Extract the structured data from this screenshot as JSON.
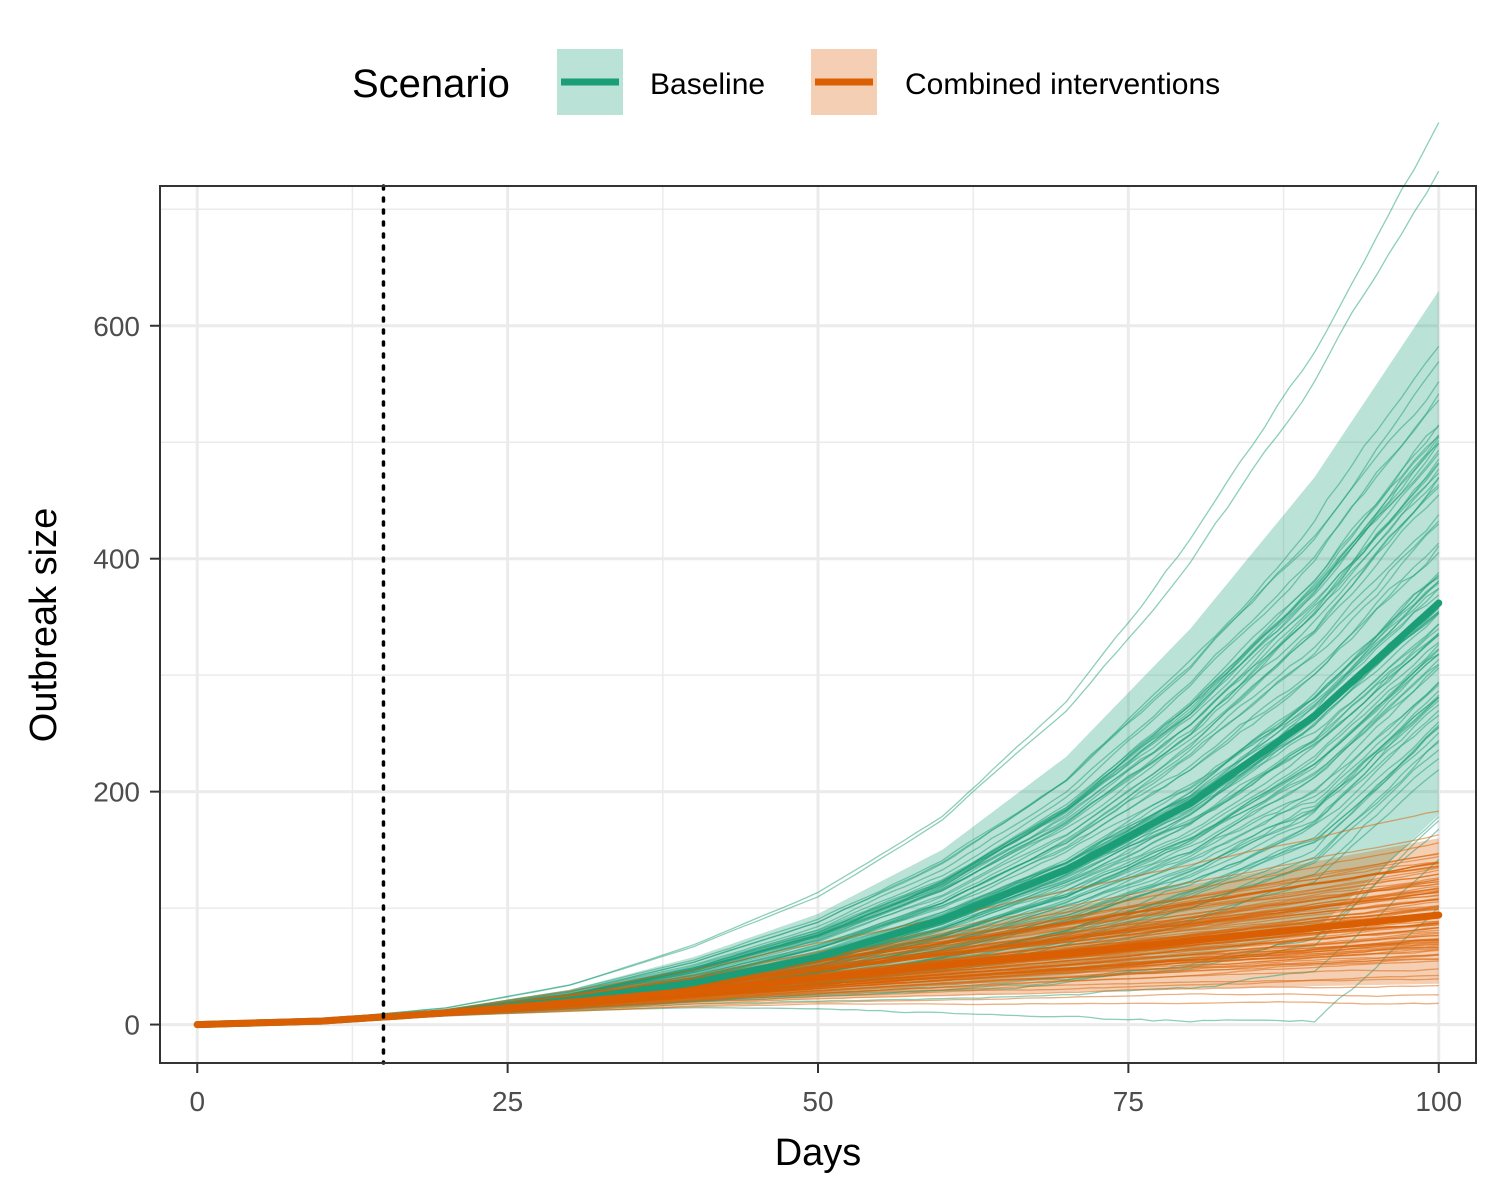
{
  "chart_data": {
    "type": "line",
    "xlabel": "Days",
    "ylabel": "Outbreak size",
    "xlim": [
      -3,
      103
    ],
    "ylim": [
      -33,
      720
    ],
    "x_ticks": [
      0,
      25,
      50,
      75,
      100
    ],
    "x_tick_labels": [
      "0",
      "25",
      "50",
      "75",
      "100"
    ],
    "y_ticks": [
      0,
      200,
      400,
      600
    ],
    "y_tick_labels": [
      "0",
      "200",
      "400",
      "600"
    ],
    "x_minor_grid": [
      12.5,
      37.5,
      62.5,
      87.5
    ],
    "y_minor_grid": [
      100,
      300,
      500,
      700
    ],
    "grid": true,
    "vline": {
      "x": 15,
      "style": "dotted",
      "color": "#000000"
    },
    "legend": {
      "title": "Scenario",
      "position": "top",
      "entries": [
        "Baseline",
        "Combined interventions"
      ]
    },
    "series": [
      {
        "name": "Baseline",
        "color": "#1b9e77",
        "band_color": "#1b9e77",
        "n_trajectories": 100,
        "x": [
          0,
          10,
          20,
          30,
          40,
          50,
          60,
          70,
          80,
          90,
          100
        ],
        "median": [
          0,
          3,
          10,
          21,
          36,
          58,
          90,
          133,
          190,
          265,
          362
        ],
        "lower": [
          0,
          3,
          8,
          14,
          20,
          26,
          33,
          42,
          56,
          80,
          180
        ],
        "upper": [
          0,
          4,
          13,
          30,
          58,
          95,
          150,
          230,
          340,
          470,
          630
        ]
      },
      {
        "name": "Combined interventions",
        "color": "#d95f02",
        "band_color": "#d95f02",
        "n_trajectories": 100,
        "x": [
          0,
          10,
          20,
          30,
          40,
          50,
          60,
          70,
          80,
          90,
          100
        ],
        "median": [
          0,
          3,
          10,
          19,
          29,
          40,
          51,
          61,
          72,
          83,
          94
        ],
        "lower": [
          0,
          3,
          8,
          13,
          18,
          22,
          25,
          28,
          31,
          33,
          35
        ],
        "upper": [
          0,
          4,
          12,
          26,
          42,
          62,
          80,
          100,
          120,
          140,
          160
        ]
      }
    ]
  }
}
